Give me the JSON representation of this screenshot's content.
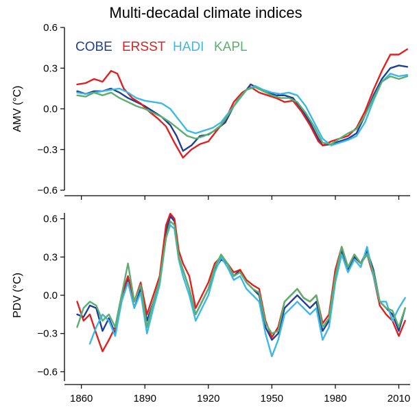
{
  "title": "Multi-decadal climate indices",
  "colors": {
    "COBE": "#1f3d99",
    "ERSST": "#e02020",
    "HADI": "#3cb8e6",
    "KAPL": "#5aaf6e"
  },
  "legend": [
    "COBE",
    "ERSST",
    "HADI",
    "KAPL"
  ],
  "chart_data": [
    {
      "type": "line",
      "ylabel": "AMV (°C)",
      "ylim": [
        -0.6,
        0.6
      ],
      "yticks": [
        -0.6,
        -0.3,
        0.0,
        0.3,
        0.6
      ],
      "ytick_labels": [
        "−0.6",
        "−0.3",
        "0.0",
        "0.3",
        "0.6"
      ],
      "xlim": [
        1852,
        2016
      ],
      "xticks": [
        1860,
        1890,
        1920,
        1950,
        1980,
        2010
      ],
      "series": [
        {
          "name": "COBE",
          "x": [
            1858,
            1862,
            1866,
            1870,
            1874,
            1878,
            1882,
            1886,
            1890,
            1894,
            1898,
            1902,
            1905,
            1908,
            1912,
            1916,
            1920,
            1924,
            1928,
            1932,
            1936,
            1940,
            1944,
            1948,
            1952,
            1956,
            1960,
            1964,
            1968,
            1972,
            1974,
            1978,
            1982,
            1986,
            1990,
            1994,
            1998,
            2002,
            2006,
            2010,
            2014
          ],
          "y": [
            0.13,
            0.11,
            0.13,
            0.13,
            0.15,
            0.12,
            0.08,
            0.05,
            0.02,
            -0.02,
            -0.06,
            -0.12,
            -0.2,
            -0.31,
            -0.27,
            -0.2,
            -0.19,
            -0.15,
            -0.1,
            0.02,
            0.1,
            0.18,
            0.15,
            0.12,
            0.1,
            0.1,
            0.08,
            0.0,
            -0.1,
            -0.22,
            -0.27,
            -0.26,
            -0.24,
            -0.22,
            -0.18,
            -0.05,
            0.1,
            0.22,
            0.3,
            0.32,
            0.31
          ]
        },
        {
          "name": "ERSST",
          "x": [
            1858,
            1862,
            1866,
            1870,
            1874,
            1877,
            1880,
            1884,
            1888,
            1892,
            1896,
            1900,
            1904,
            1908,
            1912,
            1916,
            1920,
            1924,
            1928,
            1932,
            1936,
            1940,
            1944,
            1948,
            1952,
            1956,
            1960,
            1964,
            1968,
            1972,
            1974,
            1978,
            1982,
            1986,
            1990,
            1994,
            1998,
            2002,
            2006,
            2010,
            2014
          ],
          "y": [
            0.18,
            0.19,
            0.22,
            0.2,
            0.28,
            0.26,
            0.15,
            0.08,
            0.04,
            -0.02,
            -0.07,
            -0.13,
            -0.25,
            -0.36,
            -0.3,
            -0.26,
            -0.24,
            -0.16,
            -0.08,
            0.05,
            0.12,
            0.16,
            0.12,
            0.1,
            0.08,
            0.05,
            0.06,
            -0.02,
            -0.12,
            -0.24,
            -0.27,
            -0.24,
            -0.22,
            -0.2,
            -0.14,
            -0.02,
            0.14,
            0.28,
            0.4,
            0.4,
            0.44
          ]
        },
        {
          "name": "HADI",
          "x": [
            1858,
            1862,
            1866,
            1870,
            1874,
            1878,
            1882,
            1886,
            1890,
            1894,
            1898,
            1902,
            1906,
            1910,
            1914,
            1918,
            1922,
            1926,
            1930,
            1934,
            1938,
            1942,
            1946,
            1950,
            1954,
            1958,
            1962,
            1966,
            1970,
            1974,
            1978,
            1982,
            1986,
            1990,
            1994,
            1998,
            2002,
            2006,
            2010,
            2014
          ],
          "y": [
            0.12,
            0.11,
            0.12,
            0.13,
            0.14,
            0.15,
            0.12,
            0.08,
            0.06,
            0.05,
            0.04,
            0.0,
            -0.08,
            -0.16,
            -0.18,
            -0.16,
            -0.14,
            -0.1,
            -0.02,
            0.06,
            0.14,
            0.17,
            0.14,
            0.12,
            0.11,
            0.12,
            0.1,
            0.02,
            -0.1,
            -0.22,
            -0.27,
            -0.25,
            -0.23,
            -0.2,
            -0.1,
            0.06,
            0.2,
            0.26,
            0.24,
            0.25
          ]
        },
        {
          "name": "KAPL",
          "x": [
            1858,
            1862,
            1866,
            1870,
            1874,
            1878,
            1882,
            1886,
            1890,
            1894,
            1898,
            1902,
            1906,
            1910,
            1914,
            1918,
            1922,
            1926,
            1930,
            1934,
            1938,
            1942,
            1946,
            1950,
            1954,
            1958,
            1962,
            1966,
            1970,
            1974,
            1978,
            1982,
            1986,
            1990,
            1994,
            1998,
            2002,
            2006,
            2010,
            2014
          ],
          "y": [
            0.1,
            0.09,
            0.12,
            0.1,
            0.12,
            0.08,
            0.05,
            0.02,
            0.0,
            -0.03,
            -0.06,
            -0.1,
            -0.15,
            -0.2,
            -0.22,
            -0.2,
            -0.17,
            -0.12,
            -0.03,
            0.07,
            0.14,
            0.16,
            0.13,
            0.1,
            0.08,
            0.08,
            0.05,
            -0.03,
            -0.13,
            -0.25,
            -0.26,
            -0.22,
            -0.18,
            -0.15,
            -0.05,
            0.08,
            0.2,
            0.24,
            0.22,
            0.24
          ]
        }
      ]
    },
    {
      "type": "line",
      "ylabel": "PDV (°C)",
      "ylim": [
        -0.7,
        0.7
      ],
      "yticks": [
        -0.6,
        -0.3,
        0.0,
        0.3,
        0.6
      ],
      "ytick_labels": [
        "−0.6",
        "−0.3",
        "0.0",
        "0.3",
        "0.6"
      ],
      "xlim": [
        1852,
        2016
      ],
      "xticks": [
        1860,
        1890,
        1920,
        1950,
        1980,
        2010
      ],
      "xtick_labels": [
        "1860",
        "1890",
        "1920",
        "1950",
        "1980",
        "2010"
      ],
      "series": [
        {
          "name": "COBE",
          "x": [
            1858,
            1861,
            1864,
            1867,
            1870,
            1873,
            1876,
            1879,
            1882,
            1885,
            1888,
            1891,
            1894,
            1897,
            1900,
            1902,
            1904,
            1906,
            1908,
            1911,
            1914,
            1917,
            1920,
            1923,
            1926,
            1929,
            1932,
            1935,
            1938,
            1941,
            1944,
            1947,
            1950,
            1953,
            1956,
            1959,
            1962,
            1965,
            1968,
            1971,
            1974,
            1977,
            1980,
            1983,
            1986,
            1989,
            1992,
            1995,
            1998,
            2001,
            2004,
            2007,
            2010,
            2013
          ],
          "y": [
            -0.15,
            -0.17,
            -0.08,
            -0.1,
            -0.28,
            -0.18,
            -0.3,
            -0.05,
            0.12,
            -0.1,
            0.05,
            -0.2,
            -0.05,
            0.1,
            0.5,
            0.62,
            0.58,
            0.3,
            0.2,
            0.05,
            -0.15,
            -0.05,
            0.05,
            0.2,
            0.28,
            0.25,
            0.15,
            0.2,
            0.1,
            0.05,
            0.0,
            -0.25,
            -0.35,
            -0.3,
            -0.1,
            -0.05,
            0.0,
            -0.05,
            -0.1,
            -0.05,
            -0.28,
            -0.2,
            0.15,
            0.35,
            0.2,
            0.3,
            0.25,
            0.35,
            0.2,
            -0.05,
            -0.1,
            -0.15,
            -0.28,
            -0.1
          ]
        },
        {
          "name": "ERSST",
          "x": [
            1858,
            1861,
            1864,
            1867,
            1870,
            1873,
            1876,
            1879,
            1882,
            1885,
            1888,
            1891,
            1894,
            1897,
            1900,
            1902,
            1904,
            1906,
            1908,
            1911,
            1914,
            1917,
            1920,
            1923,
            1926,
            1929,
            1932,
            1935,
            1938,
            1941,
            1944,
            1947,
            1950,
            1953,
            1956,
            1959,
            1962,
            1965,
            1968,
            1971,
            1974,
            1977,
            1980,
            1983,
            1986,
            1989,
            1992,
            1995,
            1998,
            2001,
            2004,
            2007,
            2010,
            2013
          ],
          "y": [
            -0.05,
            -0.2,
            -0.15,
            -0.3,
            -0.44,
            -0.35,
            -0.25,
            0.0,
            0.15,
            -0.05,
            0.1,
            -0.15,
            0.0,
            0.15,
            0.55,
            0.64,
            0.6,
            0.35,
            0.25,
            0.15,
            -0.1,
            0.0,
            0.1,
            0.25,
            0.3,
            0.25,
            0.18,
            0.2,
            0.12,
            0.08,
            0.05,
            -0.2,
            -0.33,
            -0.25,
            -0.05,
            0.0,
            0.05,
            -0.02,
            -0.05,
            0.0,
            -0.22,
            -0.15,
            0.2,
            0.38,
            0.22,
            0.32,
            0.25,
            0.32,
            0.15,
            -0.08,
            -0.15,
            -0.2,
            -0.32,
            -0.2
          ]
        },
        {
          "name": "HADI",
          "x": [
            1864,
            1867,
            1870,
            1873,
            1876,
            1879,
            1882,
            1885,
            1888,
            1891,
            1894,
            1897,
            1900,
            1902,
            1904,
            1906,
            1908,
            1911,
            1914,
            1917,
            1920,
            1923,
            1926,
            1929,
            1932,
            1935,
            1938,
            1941,
            1944,
            1947,
            1950,
            1953,
            1956,
            1959,
            1962,
            1965,
            1968,
            1971,
            1974,
            1977,
            1980,
            1983,
            1986,
            1989,
            1992,
            1995,
            1998,
            2001,
            2004,
            2007,
            2010,
            2013
          ],
          "y": [
            -0.38,
            -0.25,
            -0.15,
            -0.2,
            -0.32,
            -0.05,
            0.1,
            -0.1,
            0.02,
            -0.3,
            -0.1,
            0.08,
            0.45,
            0.55,
            0.52,
            0.28,
            0.15,
            0.0,
            -0.2,
            -0.1,
            0.0,
            0.18,
            0.3,
            0.22,
            0.12,
            0.15,
            0.05,
            0.0,
            -0.05,
            -0.3,
            -0.48,
            -0.35,
            -0.15,
            -0.1,
            -0.05,
            -0.1,
            -0.15,
            -0.1,
            -0.35,
            -0.25,
            0.1,
            0.32,
            0.18,
            0.28,
            0.22,
            0.38,
            0.15,
            -0.05,
            -0.05,
            -0.2,
            -0.1,
            -0.02
          ]
        },
        {
          "name": "KAPL",
          "x": [
            1858,
            1861,
            1864,
            1867,
            1870,
            1873,
            1876,
            1879,
            1882,
            1885,
            1888,
            1891,
            1894,
            1897,
            1900,
            1902,
            1904,
            1906,
            1908,
            1911,
            1914,
            1917,
            1920,
            1923,
            1926,
            1929,
            1932,
            1935,
            1938,
            1941,
            1944,
            1947,
            1950,
            1953,
            1956,
            1959,
            1962,
            1965,
            1968,
            1971,
            1974,
            1977,
            1980,
            1983,
            1986,
            1989,
            1992,
            1995,
            1998,
            2001,
            2004,
            2007,
            2010,
            2013
          ],
          "y": [
            -0.25,
            -0.1,
            -0.05,
            -0.08,
            -0.2,
            -0.15,
            -0.25,
            0.0,
            0.25,
            -0.05,
            0.08,
            -0.25,
            -0.05,
            0.12,
            0.45,
            0.58,
            0.55,
            0.3,
            0.2,
            0.05,
            -0.15,
            -0.05,
            0.05,
            0.22,
            0.32,
            0.25,
            0.15,
            0.18,
            0.1,
            0.05,
            0.02,
            -0.22,
            -0.3,
            -0.28,
            -0.05,
            0.0,
            0.05,
            -0.02,
            -0.05,
            0.0,
            -0.25,
            -0.18,
            0.15,
            0.38,
            0.22,
            0.32,
            0.25,
            0.32,
            0.18,
            -0.05,
            -0.1,
            -0.12,
            -0.25,
            -0.1
          ]
        }
      ]
    }
  ]
}
